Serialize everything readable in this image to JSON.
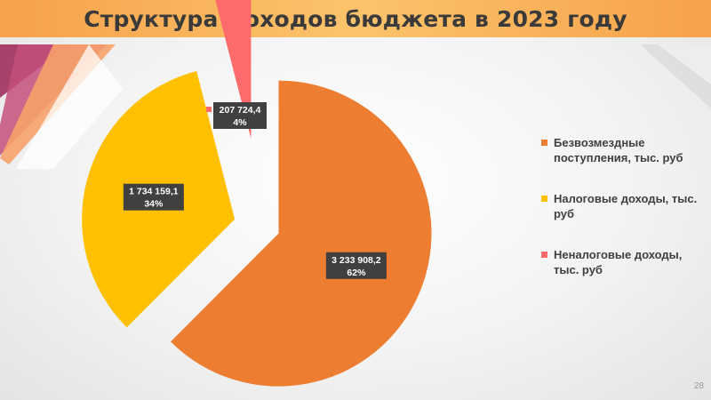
{
  "title": "Структура доходов бюджета в 2023 году",
  "page_number": "28",
  "chart_data": {
    "type": "pie",
    "title": "",
    "exploded": true,
    "start_angle_deg": 0,
    "direction": "clockwise",
    "legend_position": "right",
    "slices": [
      {
        "label": "Безвозмездные поступления, тыс. руб",
        "value": 3233908.2,
        "value_label": "3 233 908,2",
        "percent_label": "62%",
        "color": "#ED7D31"
      },
      {
        "label": "Налоговые доходы, тыс. руб",
        "value": 1734159.1,
        "value_label": "1 734 159,1",
        "percent_label": "34%",
        "color": "#FFC000"
      },
      {
        "label": "Неналоговые доходы, тыс. руб",
        "value": 207724.4,
        "value_label": "207 724,4",
        "percent_label": "4%",
        "color": "#FF6B6B"
      }
    ]
  },
  "colors": {
    "title_bar": "#FCB25C",
    "data_label_bg": "#404040"
  }
}
